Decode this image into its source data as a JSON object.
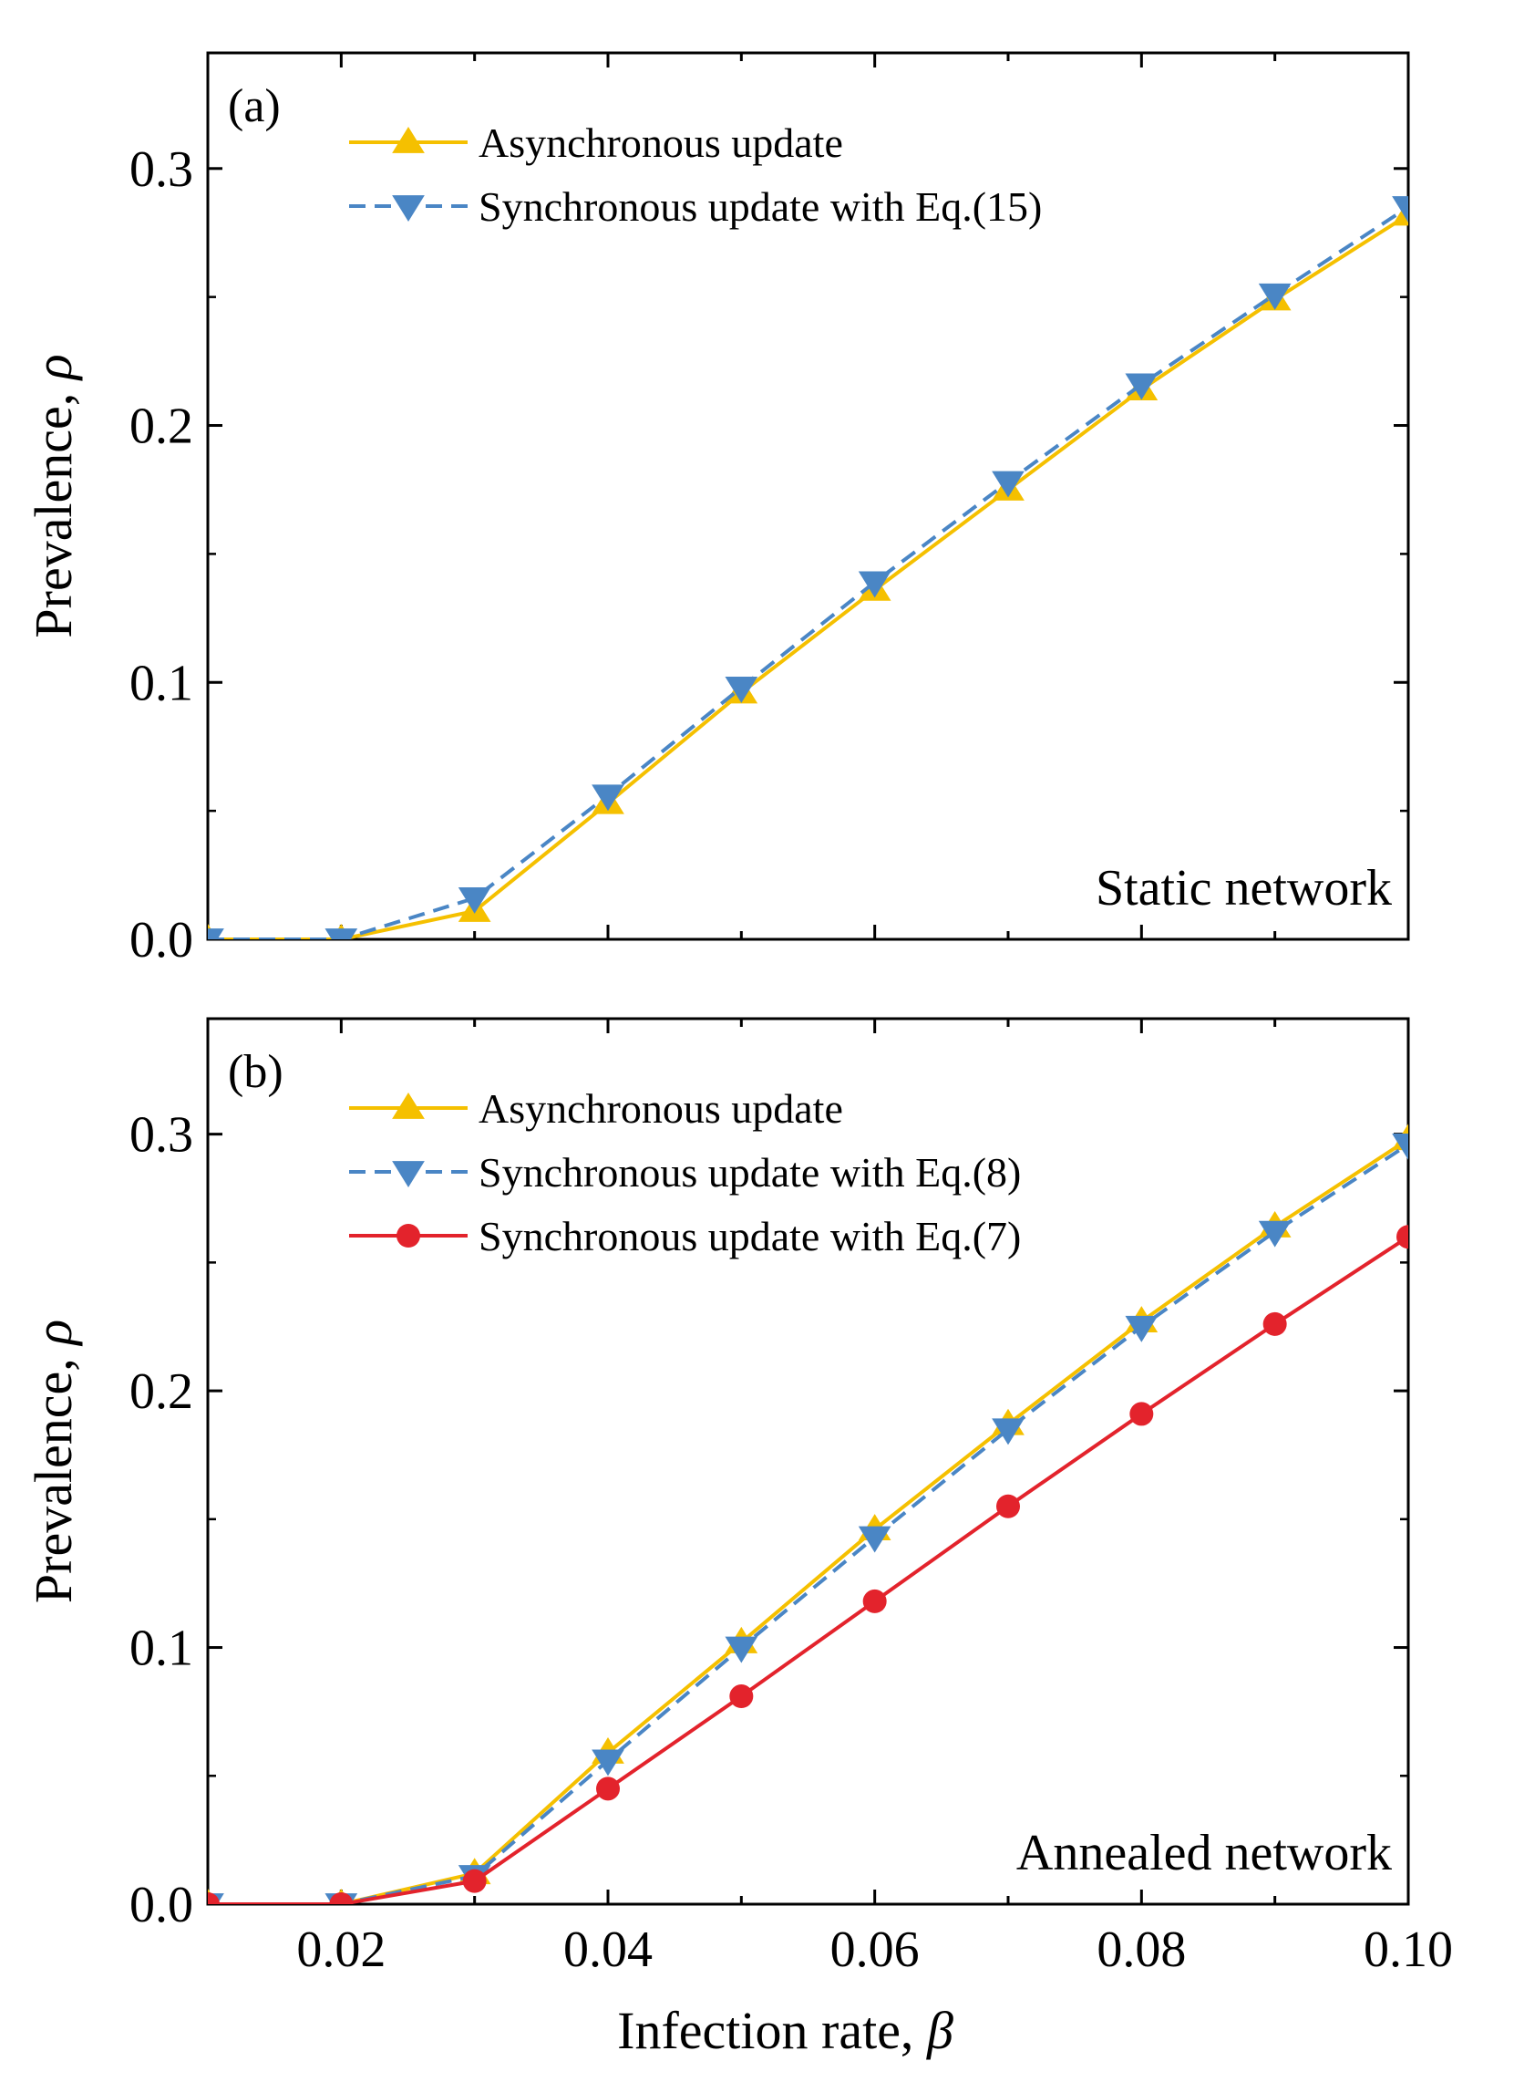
{
  "chart_data": [
    {
      "type": "line",
      "panel_label": "(a)",
      "annotation": "Static network",
      "xlabel": "Infection rate, ",
      "xlabel_symbol": "β",
      "ylabel": "Prevalence, ",
      "ylabel_symbol": "ρ",
      "xlim": [
        0.01,
        0.1
      ],
      "ylim": [
        0.0,
        0.3
      ],
      "yticks": [
        "0.0",
        "0.1",
        "0.2",
        "0.3"
      ],
      "x": [
        0.01,
        0.02,
        0.03,
        0.04,
        0.05,
        0.06,
        0.07,
        0.08,
        0.09,
        0.1
      ],
      "legend_position": "top-left",
      "series": [
        {
          "name": "Asynchronous update",
          "color": "#f5c000",
          "marker": "triangle-up",
          "dash": "solid",
          "values": [
            0.0,
            0.0,
            0.011,
            0.053,
            0.096,
            0.136,
            0.175,
            0.214,
            0.249,
            0.282
          ]
        },
        {
          "name": "Synchronous update with Eq.(15)",
          "color": "#4a86c5",
          "marker": "triangle-down",
          "dash": "dashed",
          "values": [
            0.0,
            0.0,
            0.016,
            0.056,
            0.098,
            0.139,
            0.178,
            0.216,
            0.251,
            0.285
          ]
        }
      ]
    },
    {
      "type": "line",
      "panel_label": "(b)",
      "annotation": "Annealed network",
      "xlabel": "Infection rate, ",
      "xlabel_symbol": "β",
      "ylabel": "Prevalence, ",
      "ylabel_symbol": "ρ",
      "xlim": [
        0.01,
        0.1
      ],
      "ylim": [
        0.0,
        0.3
      ],
      "yticks": [
        "0.0",
        "0.1",
        "0.2",
        "0.3"
      ],
      "xticks": [
        "0.02",
        "0.04",
        "0.06",
        "0.08",
        "0.10"
      ],
      "x": [
        0.01,
        0.02,
        0.03,
        0.04,
        0.05,
        0.06,
        0.07,
        0.08,
        0.09,
        0.1
      ],
      "legend_position": "top-left",
      "series": [
        {
          "name": "Asynchronous update",
          "color": "#f5c000",
          "marker": "triangle-up",
          "dash": "solid",
          "values": [
            0.0,
            0.0,
            0.012,
            0.059,
            0.102,
            0.146,
            0.187,
            0.227,
            0.264,
            0.298
          ]
        },
        {
          "name": "Synchronous update with Eq.(8)",
          "color": "#4a86c5",
          "marker": "triangle-down",
          "dash": "dashed",
          "values": [
            0.0,
            0.0,
            0.011,
            0.056,
            0.1,
            0.143,
            0.185,
            0.225,
            0.262,
            0.296
          ]
        },
        {
          "name": "Synchronous update with Eq.(7)",
          "color": "#e3232c",
          "marker": "circle",
          "dash": "solid",
          "values": [
            0.0,
            0.0,
            0.009,
            0.045,
            0.081,
            0.118,
            0.155,
            0.191,
            0.226,
            0.26
          ]
        }
      ]
    }
  ]
}
